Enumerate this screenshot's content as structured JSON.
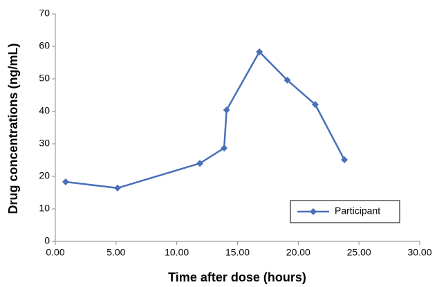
{
  "chart_data": {
    "type": "line",
    "x_label": "Time after dose (hours)",
    "y_label": "Drug concentrations (ng/mL)",
    "x": [
      0.85,
      5.12,
      11.9,
      13.9,
      14.1,
      16.8,
      19.1,
      21.4,
      23.8
    ],
    "series": [
      {
        "name": "Participant",
        "color": "#4a6fb8",
        "values": [
          18.3,
          16.4,
          24.0,
          28.7,
          40.4,
          58.3,
          49.6,
          42.1,
          25.1
        ]
      }
    ],
    "xlim": [
      0,
      30
    ],
    "xticks": [
      {
        "value": 0,
        "label": "0.00"
      },
      {
        "value": 5,
        "label": "5.00"
      },
      {
        "value": 10,
        "label": "10.00"
      },
      {
        "value": 15,
        "label": "15.00"
      },
      {
        "value": 20,
        "label": "20.00"
      },
      {
        "value": 25,
        "label": "25.00"
      },
      {
        "value": 30,
        "label": "30.00"
      }
    ],
    "ylim": [
      0,
      70
    ],
    "yticks": [
      0,
      10,
      20,
      30,
      40,
      50,
      60,
      70
    ],
    "grid": false,
    "legend": "lower right"
  }
}
